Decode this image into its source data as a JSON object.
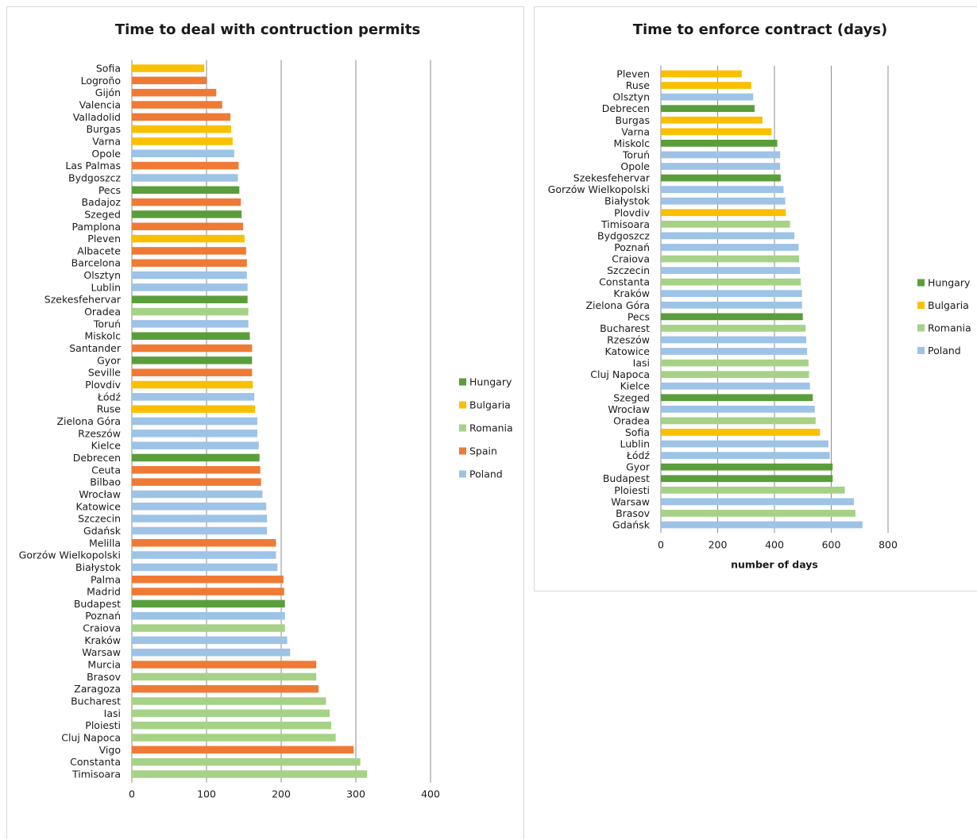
{
  "colors": {
    "Hungary": "#5a9e3c",
    "Bulgaria": "#f9c000",
    "Romania": "#a6d287",
    "Spain": "#ef7a35",
    "Poland": "#9dc3e6"
  },
  "chart_data": [
    {
      "type": "bar",
      "orientation": "horizontal",
      "title": "Time to deal with contruction permits",
      "xlabel": "",
      "xlim": [
        0,
        400
      ],
      "xticks": [
        0,
        100,
        200,
        300,
        400
      ],
      "grid": true,
      "legend_position": "right",
      "legend": [
        "Hungary",
        "Bulgaria",
        "Romania",
        "Spain",
        "Poland"
      ],
      "categories": [
        "Sofia",
        "Logroño",
        "Gijón",
        "Valencia",
        "Valladolid",
        "Burgas",
        "Varna",
        "Opole",
        "Las Palmas",
        "Bydgoszcz",
        "Pecs",
        "Badajoz",
        "Szeged",
        "Pamplona",
        "Pleven",
        "Albacete",
        "Barcelona",
        "Olsztyn",
        "Lublin",
        "Szekesfehervar",
        "Oradea",
        "Toruń",
        "Miskolc",
        "Santander",
        "Gyor",
        "Seville",
        "Plovdiv",
        "Łódź",
        "Ruse",
        "Zielona Góra",
        "Rzeszów",
        "Kielce",
        "Debrecen",
        "Ceuta",
        "Bilbao",
        "Wrocław",
        "Katowice",
        "Szczecin",
        "Gdańsk",
        "Melilla",
        "Gorzów Wielkopolski",
        "Białystok",
        "Palma",
        "Madrid",
        "Budapest",
        "Poznań",
        "Craiova",
        "Kraków",
        "Warsaw",
        "Murcia",
        "Brasov",
        "Zaragoza",
        "Bucharest",
        "Iasi",
        "Ploiesti",
        "Cluj Napoca",
        "Vigo",
        "Constanta",
        "Timisoara"
      ],
      "groups": [
        "Bulgaria",
        "Spain",
        "Spain",
        "Spain",
        "Spain",
        "Bulgaria",
        "Bulgaria",
        "Poland",
        "Spain",
        "Poland",
        "Hungary",
        "Spain",
        "Hungary",
        "Spain",
        "Bulgaria",
        "Spain",
        "Spain",
        "Poland",
        "Poland",
        "Hungary",
        "Romania",
        "Poland",
        "Hungary",
        "Spain",
        "Hungary",
        "Spain",
        "Bulgaria",
        "Poland",
        "Bulgaria",
        "Poland",
        "Poland",
        "Poland",
        "Hungary",
        "Spain",
        "Spain",
        "Poland",
        "Poland",
        "Poland",
        "Poland",
        "Spain",
        "Poland",
        "Poland",
        "Spain",
        "Spain",
        "Hungary",
        "Poland",
        "Romania",
        "Poland",
        "Poland",
        "Spain",
        "Romania",
        "Spain",
        "Romania",
        "Romania",
        "Romania",
        "Romania",
        "Spain",
        "Romania",
        "Romania"
      ],
      "values": [
        97,
        100,
        113,
        121,
        132,
        133,
        135,
        137,
        143,
        142,
        144,
        146,
        147,
        149,
        151,
        153,
        154,
        154,
        155,
        155,
        156,
        156,
        158,
        161,
        161,
        161,
        162,
        164,
        165,
        168,
        168,
        170,
        171,
        172,
        173,
        175,
        180,
        181,
        181,
        193,
        193,
        195,
        203,
        204,
        205,
        205,
        205,
        208,
        212,
        247,
        247,
        250,
        260,
        265,
        267,
        273,
        297,
        306,
        315
      ]
    },
    {
      "type": "bar",
      "orientation": "horizontal",
      "title": "Time to enforce contract (days)",
      "xlabel": "number of days",
      "xlim": [
        0,
        800
      ],
      "xticks": [
        0,
        200,
        400,
        600,
        800
      ],
      "grid": true,
      "legend_position": "right",
      "legend": [
        "Hungary",
        "Bulgaria",
        "Romania",
        "Poland"
      ],
      "categories": [
        "Pleven",
        "Ruse",
        "Olsztyn",
        "Debrecen",
        "Burgas",
        "Varna",
        "Miskolc",
        "Toruń",
        "Opole",
        "Szekesfehervar",
        "Gorzów Wielkopolski",
        "Białystok",
        "Plovdiv",
        "Timisoara",
        "Bydgoszcz",
        "Poznań",
        "Craiova",
        "Szczecin",
        "Constanta",
        "Kraków",
        "Zielona Góra",
        "Pecs",
        "Bucharest",
        "Rzeszów",
        "Katowice",
        "Iasi",
        "Cluj Napoca",
        "Kielce",
        "Szeged",
        "Wrocław",
        "Oradea",
        "Sofia",
        "Lublin",
        "Łódź",
        "Gyor",
        "Budapest",
        "Ploiesti",
        "Warsaw",
        "Brasov",
        "Gdańsk"
      ],
      "groups": [
        "Bulgaria",
        "Bulgaria",
        "Poland",
        "Hungary",
        "Bulgaria",
        "Bulgaria",
        "Hungary",
        "Poland",
        "Poland",
        "Hungary",
        "Poland",
        "Poland",
        "Bulgaria",
        "Romania",
        "Poland",
        "Poland",
        "Romania",
        "Poland",
        "Romania",
        "Poland",
        "Poland",
        "Hungary",
        "Romania",
        "Poland",
        "Poland",
        "Romania",
        "Romania",
        "Poland",
        "Hungary",
        "Poland",
        "Romania",
        "Bulgaria",
        "Poland",
        "Poland",
        "Hungary",
        "Hungary",
        "Romania",
        "Poland",
        "Romania",
        "Poland"
      ],
      "values": [
        285,
        318,
        325,
        330,
        358,
        390,
        410,
        420,
        420,
        422,
        432,
        438,
        440,
        455,
        470,
        485,
        487,
        490,
        493,
        497,
        497,
        500,
        510,
        512,
        515,
        520,
        522,
        525,
        535,
        542,
        545,
        560,
        590,
        595,
        605,
        605,
        648,
        680,
        685,
        710
      ]
    }
  ]
}
